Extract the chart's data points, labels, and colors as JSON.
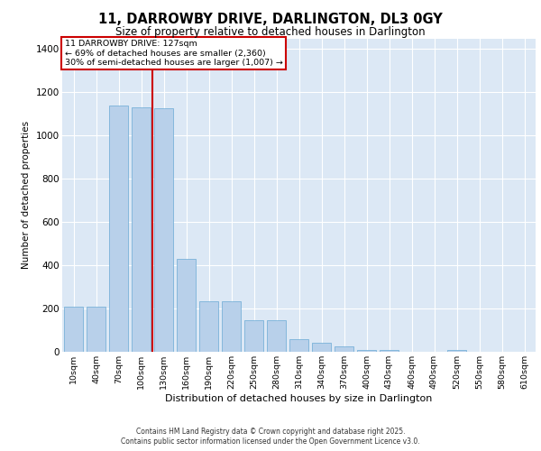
{
  "title_line1": "11, DARROWBY DRIVE, DARLINGTON, DL3 0GY",
  "title_line2": "Size of property relative to detached houses in Darlington",
  "xlabel": "Distribution of detached houses by size in Darlington",
  "ylabel": "Number of detached properties",
  "categories": [
    "10sqm",
    "40sqm",
    "70sqm",
    "100sqm",
    "130sqm",
    "160sqm",
    "190sqm",
    "220sqm",
    "250sqm",
    "280sqm",
    "310sqm",
    "340sqm",
    "370sqm",
    "400sqm",
    "430sqm",
    "460sqm",
    "490sqm",
    "520sqm",
    "550sqm",
    "580sqm",
    "610sqm"
  ],
  "values": [
    207,
    207,
    1140,
    1130,
    1125,
    430,
    235,
    235,
    145,
    145,
    58,
    40,
    25,
    10,
    10,
    0,
    0,
    10,
    0,
    0,
    0
  ],
  "bar_color": "#b8d0ea",
  "bar_edgecolor": "#6aaad4",
  "background_color": "#dce8f5",
  "grid_color": "#ffffff",
  "vline_x_index": 4,
  "vline_color": "#cc0000",
  "annotation_text": "11 DARROWBY DRIVE: 127sqm\n← 69% of detached houses are smaller (2,360)\n30% of semi-detached houses are larger (1,007) →",
  "annotation_box_color": "#cc0000",
  "ylim": [
    0,
    1450
  ],
  "yticks": [
    0,
    200,
    400,
    600,
    800,
    1000,
    1200,
    1400
  ],
  "footer_line1": "Contains HM Land Registry data © Crown copyright and database right 2025.",
  "footer_line2": "Contains public sector information licensed under the Open Government Licence v3.0."
}
